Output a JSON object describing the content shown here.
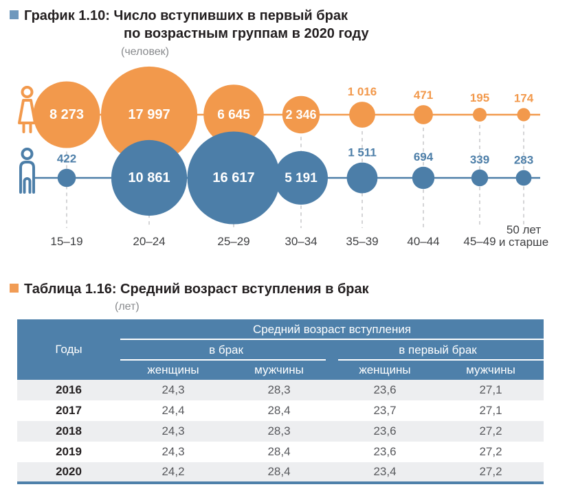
{
  "chart": {
    "bullet_color": "#6e98bd",
    "title_line1": "График 1.10: Число вступивших в первый брак",
    "title_line2": "по возрастным группам в 2020 году",
    "unit": "(человек)"
  },
  "chart_data": {
    "type": "bubble",
    "title": "Число вступивших в первый брак по возрастным группам в 2020 году",
    "unit_label": "человек",
    "categories": [
      "15–19",
      "20–24",
      "25–29",
      "30–34",
      "35–39",
      "40–44",
      "45–49",
      "50 лет\nи старше"
    ],
    "series": [
      {
        "name": "женщины",
        "icon": "female",
        "color": "#f2994c",
        "values": [
          8273,
          17997,
          6645,
          2346,
          1016,
          471,
          195,
          174
        ]
      },
      {
        "name": "мужчины",
        "icon": "male",
        "color": "#4c7ea8",
        "values": [
          422,
          10861,
          16617,
          5191,
          1511,
          694,
          339,
          283
        ]
      }
    ],
    "legend_position": "left-icons",
    "label_format": "thousands-space",
    "grid": "dashed-vertical-guides"
  },
  "table": {
    "bullet_color": "#f19c55",
    "title": "Таблица 1.16: Средний возраст вступления в брак",
    "unit": "(лет)",
    "header": {
      "years": "Годы",
      "group": "Средний возраст вступления",
      "subgroups": [
        "в брак",
        "в первый брак"
      ],
      "columns": [
        "женщины",
        "мужчины",
        "женщины",
        "мужчины"
      ]
    },
    "rows": [
      {
        "year": "2016",
        "values": [
          "24,3",
          "28,3",
          "23,6",
          "27,1"
        ]
      },
      {
        "year": "2017",
        "values": [
          "24,4",
          "28,4",
          "23,7",
          "27,1"
        ]
      },
      {
        "year": "2018",
        "values": [
          "24,3",
          "28,3",
          "23,6",
          "27,2"
        ]
      },
      {
        "year": "2019",
        "values": [
          "24,3",
          "28,4",
          "23,6",
          "27,2"
        ]
      },
      {
        "year": "2020",
        "values": [
          "24,2",
          "28,4",
          "23,4",
          "27,2"
        ]
      }
    ],
    "colors": {
      "header_bg": "#4e80aa",
      "alt_row_bg": "#edeef0",
      "bottom_border": "#4e80aa"
    }
  }
}
